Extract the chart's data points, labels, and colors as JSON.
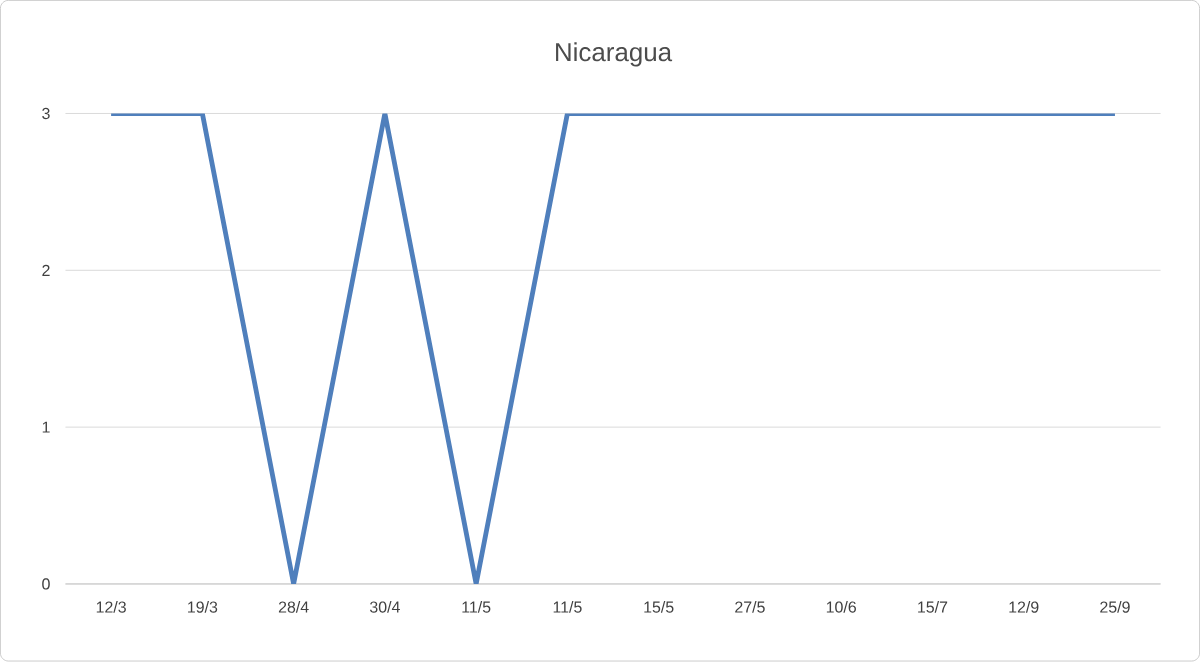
{
  "chart_data": {
    "type": "line",
    "title": "Nicaragua",
    "categories": [
      "12/3",
      "19/3",
      "28/4",
      "30/4",
      "11/5",
      "11/5",
      "15/5",
      "27/5",
      "10/6",
      "15/7",
      "12/9",
      "25/9"
    ],
    "series": [
      {
        "color": "#4f7fbc",
        "values": [
          3,
          3,
          0,
          3,
          0,
          3,
          3,
          3,
          3,
          3,
          3,
          3
        ]
      }
    ],
    "ylim": [
      0,
      3
    ],
    "yticks": [
      0,
      1,
      2,
      3
    ],
    "grid": "y",
    "marker": "none",
    "line_style": "solid"
  }
}
